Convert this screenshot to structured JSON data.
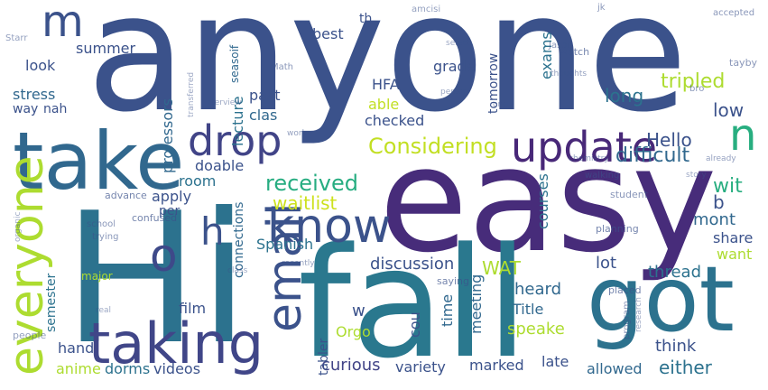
{
  "word_cloud": {
    "words": [
      {
        "text": "anyone",
        "color": "#3b528b"
      },
      {
        "text": "easy",
        "color": "#472c7a"
      },
      {
        "text": "Hi",
        "color": "#2c728e"
      },
      {
        "text": "fall",
        "color": "#2a788e"
      },
      {
        "text": "take",
        "color": "#31688e"
      },
      {
        "text": "got",
        "color": "#2c728e"
      },
      {
        "text": "taking",
        "color": "#404688"
      },
      {
        "text": "everyone",
        "color": "#addc30"
      },
      {
        "text": "email",
        "color": "#3b528b"
      },
      {
        "text": "know",
        "color": "#3b528b"
      },
      {
        "text": "update",
        "color": "#482878"
      },
      {
        "text": "drop",
        "color": "#414487"
      },
      {
        "text": "Considering",
        "color": "#c2df23"
      },
      {
        "text": "n",
        "color": "#28ae80"
      },
      {
        "text": "m",
        "color": "#3b528b"
      },
      {
        "text": "o",
        "color": "#3e4989"
      },
      {
        "text": "h",
        "color": "#3b528b"
      },
      {
        "text": "received",
        "color": "#27ad81"
      },
      {
        "text": "waitlist",
        "color": "#cde11d"
      },
      {
        "text": "Hello",
        "color": "#3b528b"
      },
      {
        "text": "difficult",
        "color": "#31688e"
      },
      {
        "text": "tripled",
        "color": "#addc30"
      },
      {
        "text": "long",
        "color": "#2c728e"
      },
      {
        "text": "low",
        "color": "#3b528b"
      },
      {
        "text": "wit",
        "color": "#28ae80"
      },
      {
        "text": "b",
        "color": "#3b528b"
      },
      {
        "text": "mont",
        "color": "#31688e"
      },
      {
        "text": "share",
        "color": "#3b528b"
      },
      {
        "text": "want",
        "color": "#addc30"
      },
      {
        "text": "thread",
        "color": "#2c728e"
      },
      {
        "text": "lot",
        "color": "#3b528b"
      },
      {
        "text": "think",
        "color": "#3b528b"
      },
      {
        "text": "either",
        "color": "#2c728e"
      },
      {
        "text": "allowed",
        "color": "#31688e"
      },
      {
        "text": "late",
        "color": "#3b528b"
      },
      {
        "text": "marked",
        "color": "#3b528b"
      },
      {
        "text": "variety",
        "color": "#3b528b"
      },
      {
        "text": "curious",
        "color": "#414487"
      },
      {
        "text": "videos",
        "color": "#3b528b"
      },
      {
        "text": "dorms",
        "color": "#2c728e"
      },
      {
        "text": "anime",
        "color": "#addc30"
      },
      {
        "text": "hand",
        "color": "#3b528b"
      },
      {
        "text": "semester",
        "color": "#2c728e"
      },
      {
        "text": "film",
        "color": "#3b528b"
      },
      {
        "text": "Spanish",
        "color": "#2c728e"
      },
      {
        "text": "discussion",
        "color": "#3b528b"
      },
      {
        "text": "WAT",
        "color": "#addc30"
      },
      {
        "text": "heard",
        "color": "#31688e"
      },
      {
        "text": "Title",
        "color": "#31688e"
      },
      {
        "text": "speake",
        "color": "#addc30"
      },
      {
        "text": "Orgo",
        "color": "#addc30"
      },
      {
        "text": "w",
        "color": "#3b528b"
      },
      {
        "text": "cou",
        "color": "#3b528b"
      },
      {
        "text": "time",
        "color": "#31688e"
      },
      {
        "text": "meeting",
        "color": "#31688e"
      },
      {
        "text": "courses",
        "color": "#2c728e"
      },
      {
        "text": "connections",
        "color": "#31688e"
      },
      {
        "text": "tabler",
        "color": "#3b528b"
      },
      {
        "text": "room",
        "color": "#2c728e"
      },
      {
        "text": "doable",
        "color": "#3b528b"
      },
      {
        "text": "apply",
        "color": "#3b528b"
      },
      {
        "text": "per",
        "color": "#3b528b"
      },
      {
        "text": "lecture",
        "color": "#2c728e"
      },
      {
        "text": "professors",
        "color": "#31688e"
      },
      {
        "text": "clas",
        "color": "#31688e"
      },
      {
        "text": "past",
        "color": "#3b528b"
      },
      {
        "text": "able",
        "color": "#c2df23"
      },
      {
        "text": "checked",
        "color": "#3b528b"
      },
      {
        "text": "HFA",
        "color": "#3b528b"
      },
      {
        "text": "grade",
        "color": "#3b528b"
      },
      {
        "text": "tomorrow",
        "color": "#3b528b"
      },
      {
        "text": "exams",
        "color": "#2c728e"
      },
      {
        "text": "best",
        "color": "#3b528b"
      },
      {
        "text": "th",
        "color": "#3b528b"
      },
      {
        "text": "summer",
        "color": "#3b528b"
      },
      {
        "text": "look",
        "color": "#3b528b"
      },
      {
        "text": "stress",
        "color": "#31688e"
      },
      {
        "text": "way",
        "color": "#3b528b"
      },
      {
        "text": "nah",
        "color": "#3b528b"
      },
      {
        "text": "seasoif",
        "color": "#31688e"
      },
      {
        "text": "major",
        "color": "#addc30"
      },
      {
        "text": "people",
        "color": "#3b528b"
      },
      {
        "text": "confused",
        "color": "#3b528b"
      },
      {
        "text": "trying",
        "color": "#3b528b"
      },
      {
        "text": "school",
        "color": "#3b528b"
      },
      {
        "text": "advance",
        "color": "#3b528b"
      },
      {
        "text": "student",
        "color": "#3b528b"
      },
      {
        "text": "planning",
        "color": "#3b528b"
      },
      {
        "text": "saying",
        "color": "#3b528b"
      },
      {
        "text": "placed",
        "color": "#3b528b"
      },
      {
        "text": "program",
        "color": "#3b528b"
      },
      {
        "text": "research",
        "color": "#3b528b"
      },
      {
        "text": "chemistry",
        "color": "#3b528b"
      },
      {
        "text": "walking",
        "color": "#3b528b"
      },
      {
        "text": "story",
        "color": "#3b528b"
      },
      {
        "text": "already",
        "color": "#3b528b"
      },
      {
        "text": "work",
        "color": "#3b528b"
      },
      {
        "text": "Math",
        "color": "#3b528b"
      },
      {
        "text": "Jason",
        "color": "#3b528b"
      },
      {
        "text": "thoughts",
        "color": "#3b528b"
      },
      {
        "text": "watch",
        "color": "#3b528b"
      },
      {
        "text": "tayby",
        "color": "#3b528b"
      },
      {
        "text": "bro",
        "color": "#3b528b"
      },
      {
        "text": "person",
        "color": "#3b528b"
      },
      {
        "text": "accepted",
        "color": "#3b528b"
      },
      {
        "text": "select",
        "color": "#3b528b"
      },
      {
        "text": "interview",
        "color": "#3b528b"
      },
      {
        "text": "transferred",
        "color": "#3b528b"
      },
      {
        "text": "Starr",
        "color": "#3b528b"
      },
      {
        "text": "recently",
        "color": "#3b528b"
      },
      {
        "text": "organic",
        "color": "#3b528b"
      },
      {
        "text": "class",
        "color": "#3b528b"
      },
      {
        "text": "one",
        "color": "#3b528b"
      },
      {
        "text": "real",
        "color": "#3b528b"
      },
      {
        "text": "amcisi",
        "color": "#3b528b"
      },
      {
        "text": "jk",
        "color": "#3b528b"
      }
    ]
  }
}
